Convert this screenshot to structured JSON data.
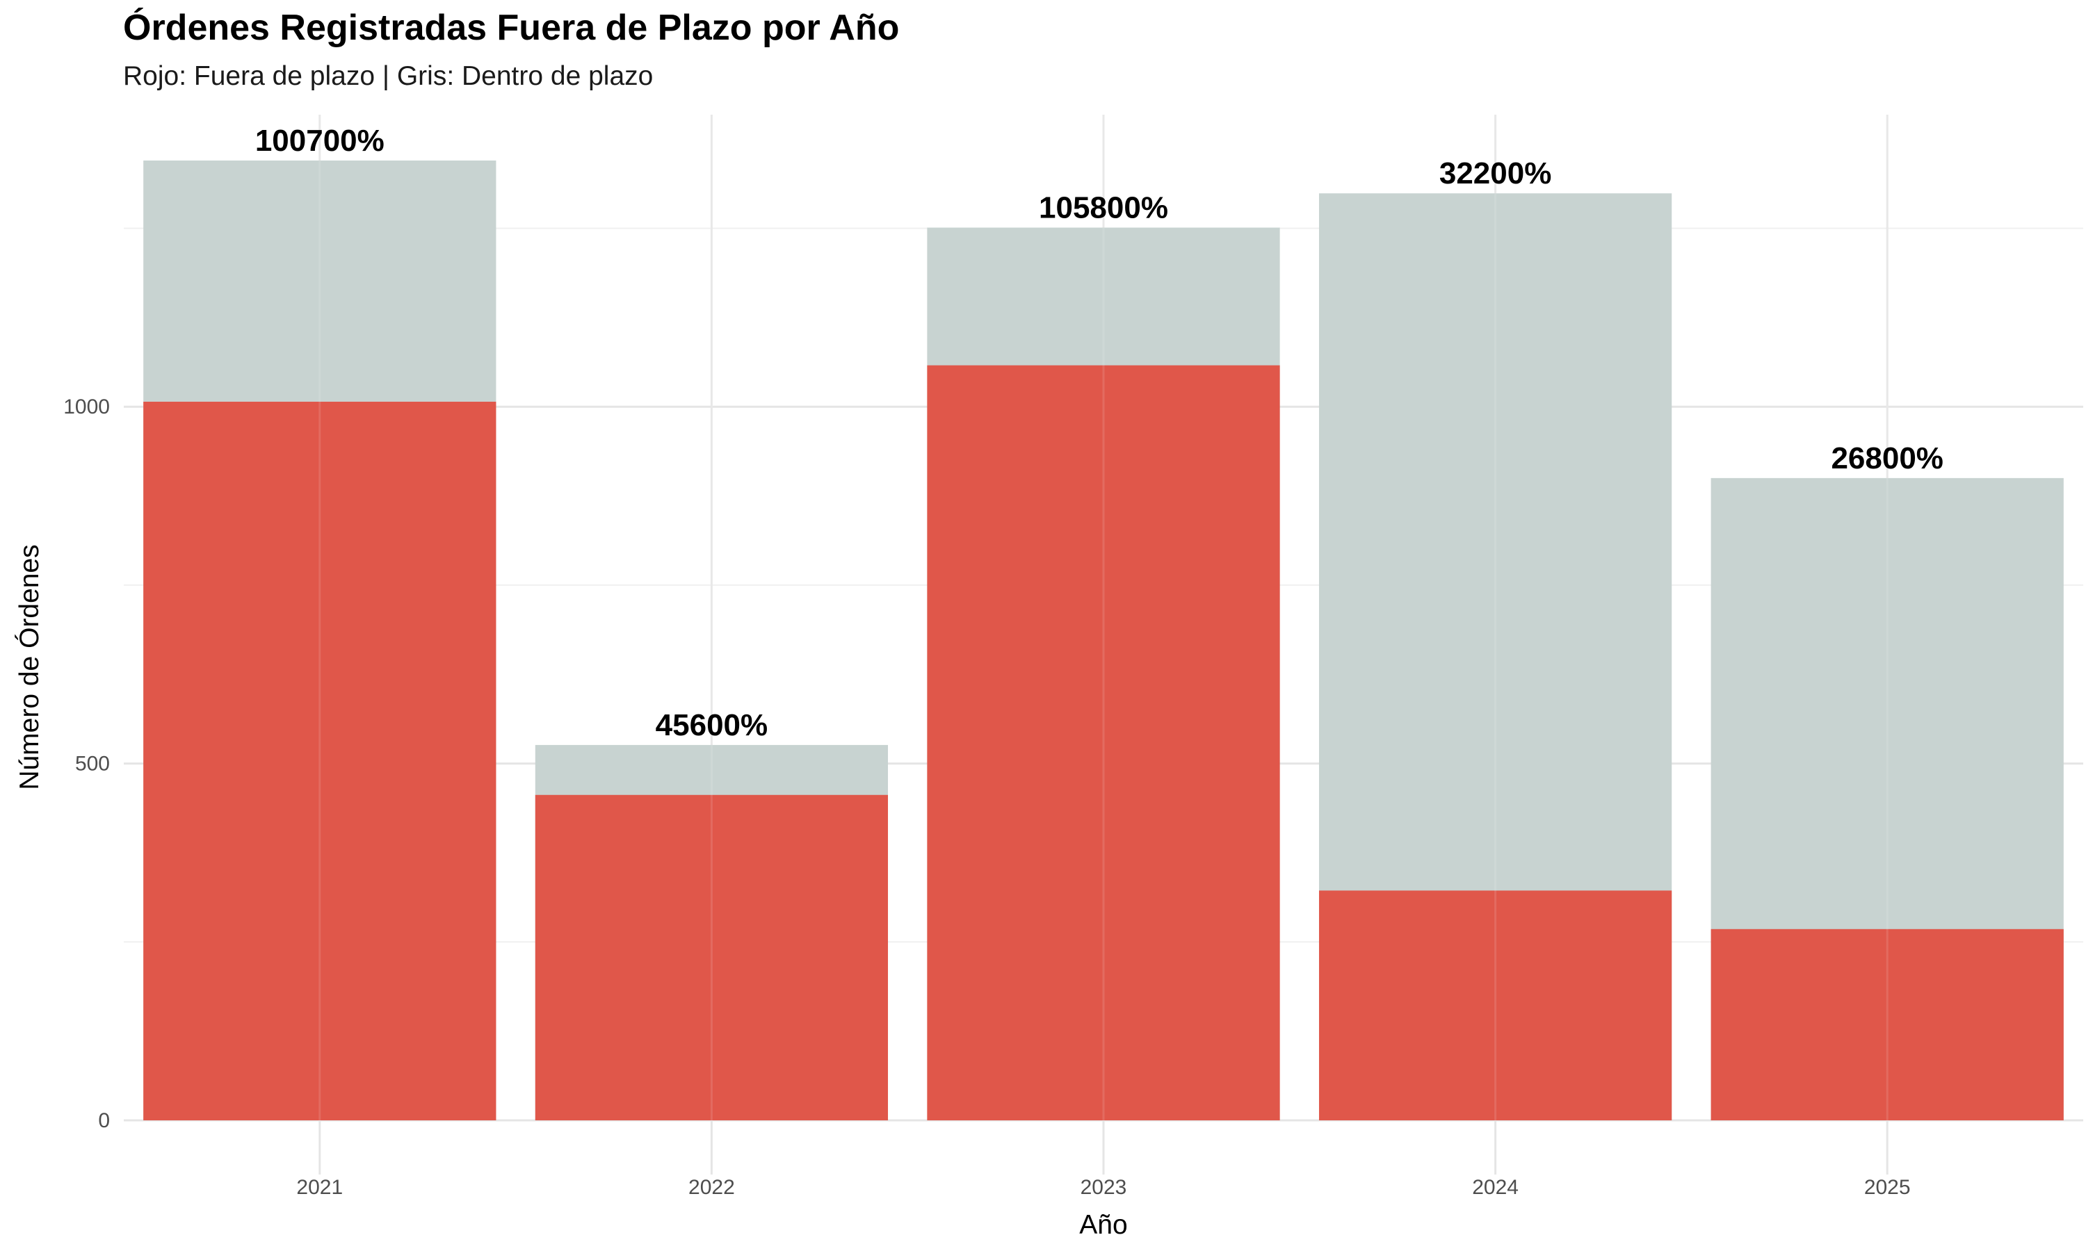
{
  "chart_data": {
    "type": "bar",
    "title": "Órdenes Registradas Fuera de Plazo por Año",
    "subtitle": "Rojo: Fuera de plazo | Gris: Dentro de plazo",
    "xlabel": "Año",
    "ylabel": "Número de Órdenes",
    "categories": [
      "2021",
      "2022",
      "2023",
      "2024",
      "2025"
    ],
    "series": [
      {
        "name": "Fuera de plazo",
        "color": "#e0574a",
        "values": [
          1007,
          456,
          1058,
          322,
          268
        ]
      },
      {
        "name": "Dentro de plazo",
        "color": "#c8d3d1",
        "values": [
          1345,
          526,
          1251,
          1299,
          900
        ]
      }
    ],
    "data_labels": [
      "100700%",
      "45600%",
      "105800%",
      "32200%",
      "26800%"
    ],
    "ylim": [
      -60,
      1405
    ],
    "yticks": [
      0,
      500,
      1000
    ],
    "ytick_labels": [
      "0",
      "500",
      "1000"
    ],
    "grid": true,
    "legend": "none"
  }
}
